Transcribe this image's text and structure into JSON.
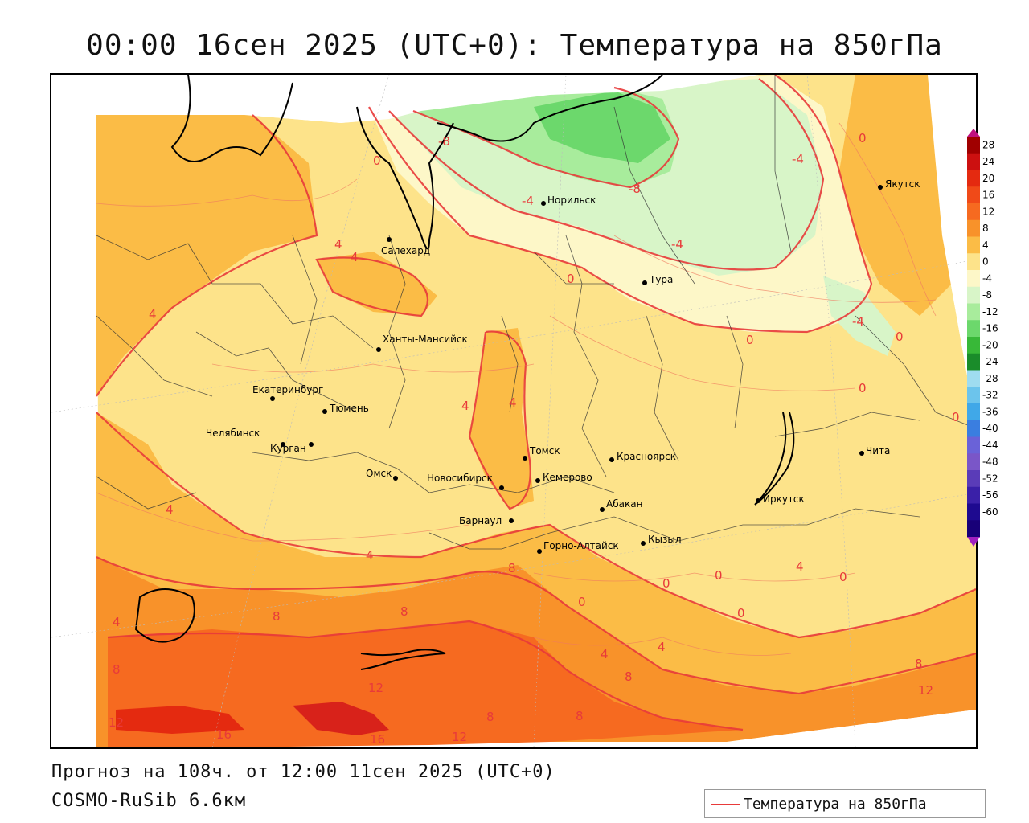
{
  "header": {
    "title": "00:00 16сен 2025 (UTC+0): Температура на 850гПа"
  },
  "footer": {
    "forecast": "Прогноз на 108ч. от 12:00 11сен 2025 (UTC+0)",
    "model": "COSMO-RuSib 6.6км"
  },
  "legend": {
    "label": "Температура на 850гПа",
    "line_color": "#e83a3a"
  },
  "colorbar": {
    "labels": [
      "28",
      "24",
      "20",
      "16",
      "12",
      "8",
      "4",
      "0",
      "-4",
      "-8",
      "-12",
      "-16",
      "-20",
      "-24",
      "-28",
      "-32",
      "-36",
      "-40",
      "-44",
      "-48",
      "-52",
      "-56",
      "-60"
    ],
    "colors": [
      "#a00000",
      "#cc1010",
      "#e42a10",
      "#f04a18",
      "#f66a20",
      "#f8922a",
      "#fbbc46",
      "#fde38a",
      "#fdf7c8",
      "#d8f5c8",
      "#a8ec9c",
      "#6cd86c",
      "#38b838",
      "#1a8c2a",
      "#9fdcf0",
      "#6cc4ec",
      "#40a8e8",
      "#3a7ee0",
      "#6a62d8",
      "#7a56c8",
      "#5a3cb8",
      "#3a20a8",
      "#1e0a90",
      "#180078"
    ]
  },
  "cities": [
    {
      "name": "Якутск"
    },
    {
      "name": "Норильск"
    },
    {
      "name": "Салехард"
    },
    {
      "name": "Тура"
    },
    {
      "name": "Ханты-Мансийск"
    },
    {
      "name": "Екатеринбург"
    },
    {
      "name": "Тюмень"
    },
    {
      "name": "Челябинск"
    },
    {
      "name": "Курган"
    },
    {
      "name": "Омск"
    },
    {
      "name": "Томск"
    },
    {
      "name": "Новосибирск"
    },
    {
      "name": "Кемерово"
    },
    {
      "name": "Красноярск"
    },
    {
      "name": "Барнаул"
    },
    {
      "name": "Абакан"
    },
    {
      "name": "Иркутск"
    },
    {
      "name": "Чита"
    },
    {
      "name": "Горно-Алтайск"
    },
    {
      "name": "Кызыл"
    }
  ],
  "isotherm_labels": [
    "-8",
    "0",
    "-4",
    "-8",
    "-4",
    "-4",
    "0",
    "4",
    "4",
    "0",
    "-4",
    "0",
    "0",
    "4",
    "4",
    "4",
    "4",
    "0",
    "4",
    "8",
    "8",
    "8",
    "4",
    "8",
    "4",
    "8",
    "12",
    "16",
    "16",
    "12",
    "8",
    "8",
    "0",
    "0",
    "0",
    "4",
    "0",
    "0",
    "4",
    "8",
    "12",
    "0",
    "12"
  ]
}
